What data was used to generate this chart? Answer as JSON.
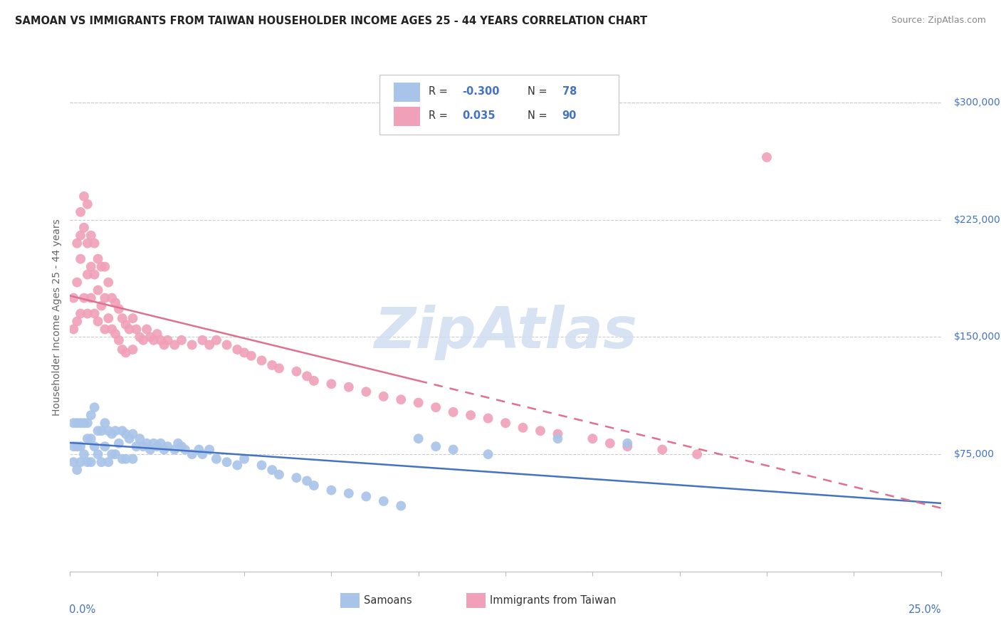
{
  "title": "SAMOAN VS IMMIGRANTS FROM TAIWAN HOUSEHOLDER INCOME AGES 25 - 44 YEARS CORRELATION CHART",
  "source": "Source: ZipAtlas.com",
  "ylabel": "Householder Income Ages 25 - 44 years",
  "ytick_values": [
    75000,
    150000,
    225000,
    300000
  ],
  "ytick_labels": [
    "$75,000",
    "$150,000",
    "$225,000",
    "$300,000"
  ],
  "xlim": [
    0.0,
    0.25
  ],
  "ylim": [
    0,
    325000
  ],
  "blue_fill": "#A8C4E8",
  "pink_fill": "#F0A0B8",
  "blue_line": "#4472C4",
  "pink_line": "#E07090",
  "watermark_color": "#D0DEF0",
  "blue_scatter_x": [
    0.001,
    0.001,
    0.001,
    0.002,
    0.002,
    0.002,
    0.003,
    0.003,
    0.003,
    0.004,
    0.004,
    0.005,
    0.005,
    0.005,
    0.006,
    0.006,
    0.006,
    0.007,
    0.007,
    0.008,
    0.008,
    0.009,
    0.009,
    0.01,
    0.01,
    0.011,
    0.011,
    0.012,
    0.012,
    0.013,
    0.013,
    0.014,
    0.015,
    0.015,
    0.016,
    0.016,
    0.017,
    0.018,
    0.018,
    0.019,
    0.02,
    0.021,
    0.022,
    0.023,
    0.024,
    0.025,
    0.026,
    0.027,
    0.028,
    0.03,
    0.031,
    0.032,
    0.033,
    0.035,
    0.037,
    0.038,
    0.04,
    0.042,
    0.045,
    0.048,
    0.05,
    0.055,
    0.058,
    0.06,
    0.065,
    0.068,
    0.07,
    0.075,
    0.08,
    0.085,
    0.09,
    0.095,
    0.1,
    0.105,
    0.11,
    0.12,
    0.14,
    0.16
  ],
  "blue_scatter_y": [
    95000,
    80000,
    70000,
    95000,
    80000,
    65000,
    95000,
    80000,
    70000,
    95000,
    75000,
    95000,
    85000,
    70000,
    100000,
    85000,
    70000,
    105000,
    80000,
    90000,
    75000,
    90000,
    70000,
    95000,
    80000,
    90000,
    70000,
    88000,
    75000,
    90000,
    75000,
    82000,
    90000,
    72000,
    88000,
    72000,
    85000,
    88000,
    72000,
    80000,
    85000,
    80000,
    82000,
    78000,
    82000,
    80000,
    82000,
    78000,
    80000,
    78000,
    82000,
    80000,
    78000,
    75000,
    78000,
    75000,
    78000,
    72000,
    70000,
    68000,
    72000,
    68000,
    65000,
    62000,
    60000,
    58000,
    55000,
    52000,
    50000,
    48000,
    45000,
    42000,
    85000,
    80000,
    78000,
    75000,
    85000,
    82000
  ],
  "pink_scatter_x": [
    0.001,
    0.001,
    0.002,
    0.002,
    0.002,
    0.003,
    0.003,
    0.003,
    0.003,
    0.004,
    0.004,
    0.004,
    0.005,
    0.005,
    0.005,
    0.005,
    0.006,
    0.006,
    0.006,
    0.007,
    0.007,
    0.007,
    0.008,
    0.008,
    0.008,
    0.009,
    0.009,
    0.01,
    0.01,
    0.01,
    0.011,
    0.011,
    0.012,
    0.012,
    0.013,
    0.013,
    0.014,
    0.014,
    0.015,
    0.015,
    0.016,
    0.016,
    0.017,
    0.018,
    0.018,
    0.019,
    0.02,
    0.021,
    0.022,
    0.023,
    0.024,
    0.025,
    0.026,
    0.027,
    0.028,
    0.03,
    0.032,
    0.035,
    0.038,
    0.04,
    0.042,
    0.045,
    0.048,
    0.05,
    0.052,
    0.055,
    0.058,
    0.06,
    0.065,
    0.068,
    0.07,
    0.075,
    0.08,
    0.085,
    0.09,
    0.095,
    0.1,
    0.105,
    0.11,
    0.115,
    0.12,
    0.125,
    0.13,
    0.135,
    0.14,
    0.15,
    0.155,
    0.16,
    0.17,
    0.18,
    0.2
  ],
  "pink_scatter_y": [
    175000,
    155000,
    210000,
    185000,
    160000,
    230000,
    215000,
    200000,
    165000,
    240000,
    220000,
    175000,
    235000,
    210000,
    190000,
    165000,
    215000,
    195000,
    175000,
    210000,
    190000,
    165000,
    200000,
    180000,
    160000,
    195000,
    170000,
    195000,
    175000,
    155000,
    185000,
    162000,
    175000,
    155000,
    172000,
    152000,
    168000,
    148000,
    162000,
    142000,
    158000,
    140000,
    155000,
    162000,
    142000,
    155000,
    150000,
    148000,
    155000,
    150000,
    148000,
    152000,
    148000,
    145000,
    148000,
    145000,
    148000,
    145000,
    148000,
    145000,
    148000,
    145000,
    142000,
    140000,
    138000,
    135000,
    132000,
    130000,
    128000,
    125000,
    122000,
    120000,
    118000,
    115000,
    112000,
    110000,
    108000,
    105000,
    102000,
    100000,
    98000,
    95000,
    92000,
    90000,
    88000,
    85000,
    82000,
    80000,
    78000,
    75000,
    265000
  ]
}
